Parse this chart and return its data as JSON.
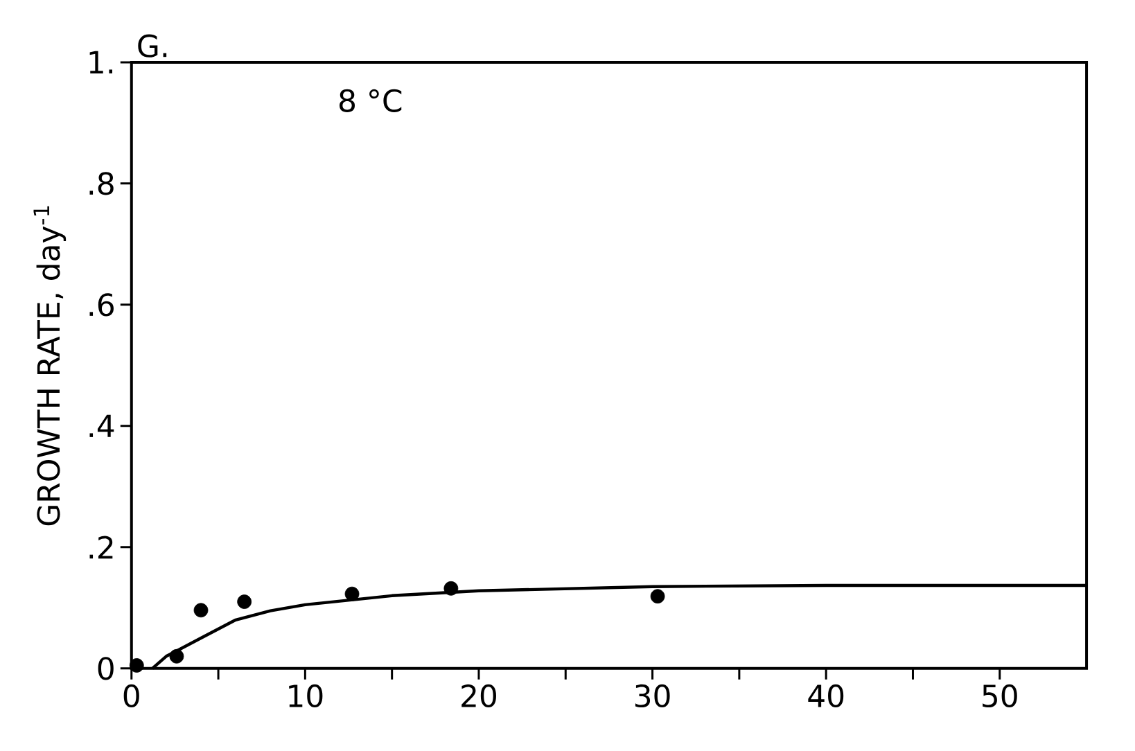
{
  "chart_data": {
    "type": "scatter",
    "title": "8 °C",
    "ylabel": "GROWTH RATE, day$^{-1}$",
    "annotations": [
      "G."
    ],
    "xlim": [
      0,
      55
    ],
    "ylim": [
      0,
      1
    ],
    "xticks": [
      0,
      {
        "value": 5,
        "label": null
      },
      10,
      {
        "value": 15,
        "label": null
      },
      20,
      {
        "value": 25,
        "label": null
      },
      30,
      {
        "value": 35,
        "label": null
      },
      40,
      {
        "value": 45,
        "label": null
      },
      50
    ],
    "yticks": [
      0,
      {
        "value": 0.2,
        "label": ".2"
      },
      {
        "value": 0.4,
        "label": ".4"
      },
      {
        "value": 0.6,
        "label": ".6"
      },
      {
        "value": 0.8,
        "label": ".8"
      },
      {
        "value": 1,
        "label": "1."
      }
    ],
    "grid": false,
    "series": [
      {
        "color": "#000000",
        "marker": "circle",
        "x": [
          0.3,
          2.6,
          4.0,
          6.5,
          12.7,
          18.4,
          30.3
        ],
        "values": [
          0.005,
          0.02,
          0.096,
          0.11,
          0.123,
          0.132,
          0.119
        ]
      },
      {
        "type": "line",
        "color": "#000000",
        "marker": "none",
        "line_style": "solid",
        "x": [
          1.2,
          2,
          4,
          6,
          8,
          10,
          15,
          20,
          30,
          40,
          55
        ],
        "values": [
          0,
          0.02,
          0.05,
          0.08,
          0.095,
          0.105,
          0.12,
          0.128,
          0.135,
          0.137,
          0.137
        ]
      }
    ]
  }
}
